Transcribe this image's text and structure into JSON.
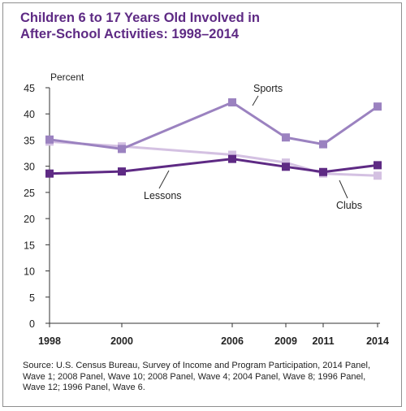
{
  "chart_data": {
    "type": "line",
    "title_lines": [
      "Children 6 to 17 Years Old Involved in",
      "After-School Activities: 1998–2014"
    ],
    "ylabel": "Percent",
    "xlabel": "",
    "x": [
      1998,
      2000,
      2006,
      2009,
      2011,
      2014
    ],
    "x_tick_labels": [
      "1998",
      "2000",
      "2006",
      "2009",
      "2011",
      "2014"
    ],
    "y_ticks": [
      0,
      5,
      10,
      15,
      20,
      25,
      30,
      35,
      40,
      45
    ],
    "ylim": [
      0,
      45
    ],
    "grid": false,
    "series": [
      {
        "name": "Clubs",
        "color": "#d4c1e2",
        "values": [
          34.7,
          33.8,
          32.2,
          30.7,
          28.6,
          28.2
        ]
      },
      {
        "name": "Sports",
        "color": "#9b82c0",
        "values": [
          35.1,
          33.3,
          42.2,
          35.5,
          34.2,
          41.4
        ]
      },
      {
        "name": "Lessons",
        "color": "#5e2a84",
        "values": [
          28.6,
          29.0,
          31.4,
          29.9,
          28.9,
          30.2
        ]
      }
    ]
  },
  "source": "Source: U.S. Census Bureau, Survey of Income and Program Participation, 2014 Panel, Wave 1; 2008 Panel, Wave 10; 2008 Panel, Wave 4; 2004 Panel, Wave 8; 1996 Panel, Wave 12; 1996 Panel, Wave 6."
}
